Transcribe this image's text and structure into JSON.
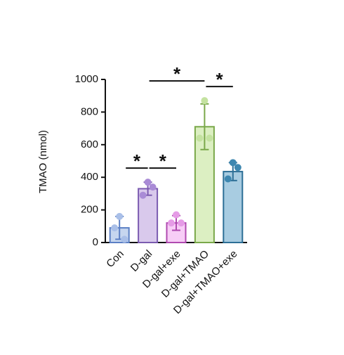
{
  "chart_data": {
    "type": "bar",
    "y_label": "TMAO (nmol)",
    "categories": [
      "Con",
      "D-gal",
      "D-gal+exe",
      "D-gal+TMAO",
      "D-gal+TMAO+exe"
    ],
    "values": [
      90,
      330,
      120,
      710,
      435
    ],
    "errors": [
      70,
      40,
      45,
      140,
      55
    ],
    "points": [
      [
        160,
        90,
        20
      ],
      [
        370,
        290,
        340
      ],
      [
        170,
        120,
        120
      ],
      [
        870,
        640,
        640
      ],
      [
        490,
        390,
        460
      ]
    ],
    "colors": [
      "#c6d6ef",
      "#d9c9ec",
      "#f7cdf6",
      "#dcefc2",
      "#a8cce1"
    ],
    "edge_colors": [
      "#5b7fc4",
      "#7b5bb0",
      "#b04ab0",
      "#7aa84a",
      "#2d6f96"
    ],
    "point_colors": [
      "#a9bfe8",
      "#a98bd6",
      "#e59be6",
      "#c4e2a0",
      "#3e87b0"
    ],
    "significance": [
      {
        "pair": [
          0,
          1
        ],
        "label": "*"
      },
      {
        "pair": [
          1,
          2
        ],
        "label": "*"
      },
      {
        "pair": [
          1,
          3
        ],
        "label": "*"
      },
      {
        "pair": [
          3,
          4
        ],
        "label": "*"
      }
    ],
    "ylim": [
      0,
      1000
    ],
    "yticks": [
      0,
      200,
      400,
      600,
      800,
      1000
    ]
  }
}
